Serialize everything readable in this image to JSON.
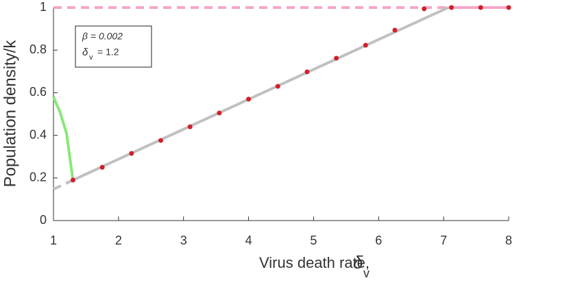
{
  "chart_data": {
    "type": "line",
    "xlabel": "Virus death rate,",
    "xlabel_symbol": "δ",
    "xlabel_subscript": "v",
    "ylabel": "Population density/k",
    "annotations": [
      "β = 0.002",
      "δ",
      "v",
      "= 1.2"
    ],
    "xlim": [
      1,
      8
    ],
    "ylim": [
      0,
      1
    ],
    "xticks": [
      1,
      2,
      3,
      4,
      5,
      6,
      7,
      8
    ],
    "yticks": [
      0,
      0.2,
      0.4,
      0.6,
      0.8,
      1
    ],
    "series": [
      {
        "color": "#f4a6c8",
        "style": "dashed",
        "x": [
          1,
          7.07
        ],
        "values": [
          1,
          1
        ]
      },
      {
        "color": "#f4a6c8",
        "style": "solid",
        "x": [
          7.07,
          8
        ],
        "values": [
          1,
          1
        ]
      },
      {
        "color": "#c0c0c0",
        "style": "dashed",
        "x": [
          1,
          1.3
        ],
        "values": [
          0.147,
          0.19
        ]
      },
      {
        "color": "#c0c0c0",
        "style": "solid",
        "x": [
          1.3,
          7.07
        ],
        "values": [
          0.19,
          1
        ]
      },
      {
        "color": "#88e878",
        "style": "solid",
        "x": [
          1,
          1.1,
          1.2,
          1.3
        ],
        "values": [
          0.58,
          0.51,
          0.41,
          0.19
        ]
      },
      {
        "color": "#d0202a",
        "style": "dots",
        "x": [
          1.3,
          1.75,
          2.2,
          2.65,
          3.1,
          3.55,
          4.0,
          4.45,
          4.9,
          5.35,
          5.8,
          6.25,
          6.7,
          7.12,
          7.57,
          8.0
        ],
        "values": [
          0.19,
          0.25,
          0.315,
          0.376,
          0.44,
          0.505,
          0.57,
          0.63,
          0.698,
          0.762,
          0.823,
          0.894,
          0.994,
          1,
          1,
          1
        ]
      }
    ]
  }
}
